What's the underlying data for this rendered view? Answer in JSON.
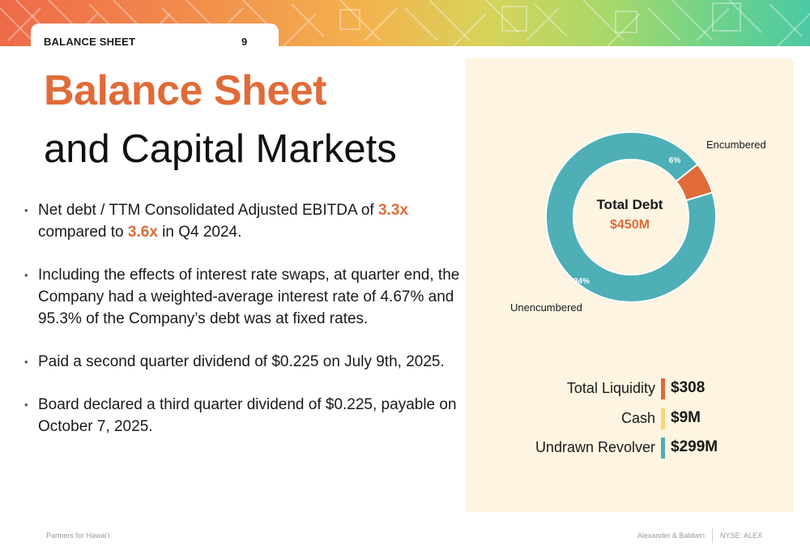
{
  "header": {
    "section": "BALANCE SHEET",
    "page_number": "9"
  },
  "title": {
    "accent": "Balance Sheet",
    "main": "and Capital Markets"
  },
  "bullets": [
    {
      "before": "Net debt / TTM Consolidated Adjusted EBITDA of ",
      "hl1": "3.3x",
      "middle": " compared to ",
      "hl2": "3.6x",
      "after": " in Q4 2024."
    },
    {
      "text": "Including the effects of interest rate swaps, at quarter end, the Company had a weighted-average interest rate of 4.67% and 95.3% of the Company’s debt was at fixed rates."
    },
    {
      "text": "Paid a second quarter dividend of $0.225 on July 9th, 2025."
    },
    {
      "text": "Board declared a third quarter dividend of $0.225, payable on October 7, 2025."
    }
  ],
  "chart_data": {
    "type": "pie",
    "center_label": "Total Debt",
    "center_value": "$450M",
    "slices": [
      {
        "name": "Encumbered",
        "value": 6,
        "label": "6%",
        "color": "#e06b38"
      },
      {
        "name": "Unencumbered",
        "value": 94,
        "label": "94%",
        "color": "#4eafb6"
      }
    ]
  },
  "liquidity": [
    {
      "label": "Total Liquidity",
      "value": "$308",
      "color": "#e06b38"
    },
    {
      "label": "Cash",
      "value": "$9M",
      "color": "#f3d77a"
    },
    {
      "label": "Undrawn Revolver",
      "value": "$299M",
      "color": "#4eafb6"
    }
  ],
  "footer": {
    "left": "Partners for Hawaiʻi",
    "company": "Alexander & Baldwin",
    "ticker": "NYSE: ALEX"
  },
  "colors": {
    "accent": "#e06b38",
    "panel": "#fdf5e1",
    "teal": "#4eafb6"
  }
}
